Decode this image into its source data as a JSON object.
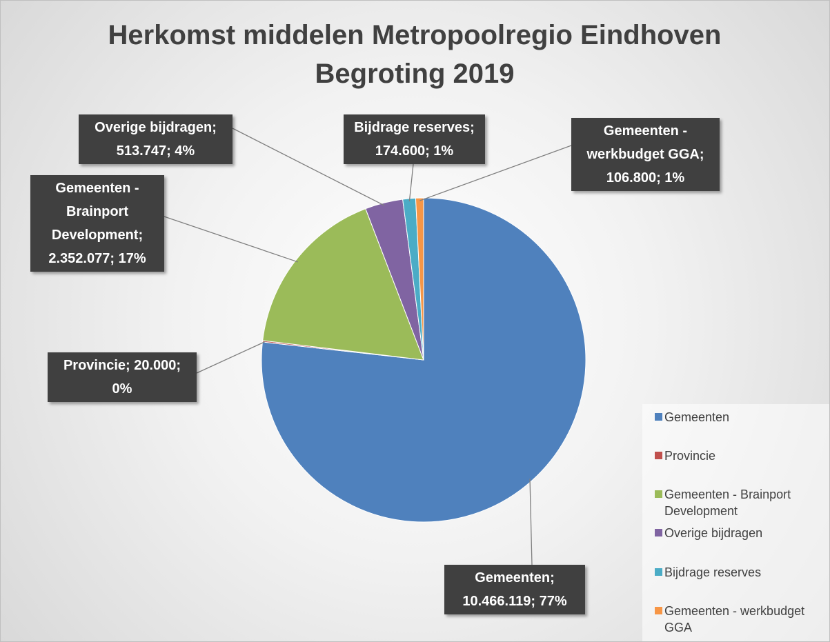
{
  "chart_data": {
    "type": "pie",
    "title": "Herkomst middelen Metropoolregio Eindhoven Begroting 2019",
    "categories": [
      "Gemeenten",
      "Provincie",
      "Gemeenten - Brainport Development",
      "Overige bijdragen",
      "Bijdrage reserves",
      "Gemeenten - werkbudget GGA"
    ],
    "values": [
      10466119,
      20000,
      2352077,
      513747,
      174600,
      106800
    ],
    "value_labels": [
      "Gemeenten; 10.466.119; 77%",
      "Provincie; 20.000; 0%",
      "Gemeenten - Brainport Development; 2.352.077; 17%",
      "Overige bijdragen; 513.747; 4%",
      "Bijdrage reserves; 174.600; 1%",
      "Gemeenten - werkbudget GGA; 106.800; 1%"
    ],
    "colors": [
      "#4f81bd",
      "#c0504d",
      "#9bbb59",
      "#8064a2",
      "#4bacc6",
      "#f79646"
    ],
    "legend": "right"
  }
}
